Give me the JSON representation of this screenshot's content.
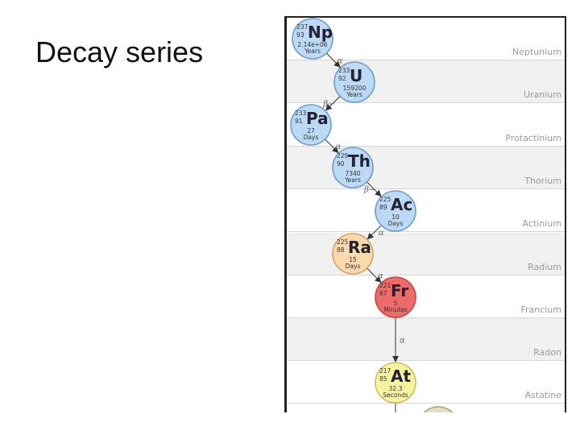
{
  "slide": {
    "title": "Decay series"
  },
  "elements": [
    "Neptunium",
    "Uranium",
    "Protactinium",
    "Thorium",
    "Actinium",
    "Radium",
    "Francium",
    "Radon",
    "Astatine"
  ],
  "nuclides": [
    {
      "symbol": "Np",
      "mass": "237",
      "atomic": "93",
      "halflife": "2.14e+06",
      "unit": "Years",
      "fill": "#bcd9f5",
      "stroke": "#6f9ccc"
    },
    {
      "symbol": "U",
      "mass": "233",
      "atomic": "92",
      "halflife": "159200",
      "unit": "Years",
      "fill": "#bcd9f5",
      "stroke": "#6f9ccc"
    },
    {
      "symbol": "Pa",
      "mass": "233",
      "atomic": "91",
      "halflife": "27",
      "unit": "Days",
      "fill": "#bcd9f5",
      "stroke": "#6f9ccc"
    },
    {
      "symbol": "Th",
      "mass": "229",
      "atomic": "90",
      "halflife": "7340",
      "unit": "Years",
      "fill": "#bcd9f5",
      "stroke": "#6f9ccc"
    },
    {
      "symbol": "Ac",
      "mass": "225",
      "atomic": "89",
      "halflife": "10",
      "unit": "Days",
      "fill": "#bcd9f5",
      "stroke": "#6f9ccc"
    },
    {
      "symbol": "Ra",
      "mass": "225",
      "atomic": "88",
      "halflife": "15",
      "unit": "Days",
      "fill": "#fbd8ad",
      "stroke": "#d2a46c"
    },
    {
      "symbol": "Fr",
      "mass": "221",
      "atomic": "87",
      "halflife": "5",
      "unit": "Minutes",
      "fill": "#ee6b6b",
      "stroke": "#c24848"
    },
    {
      "symbol": "At",
      "mass": "217",
      "atomic": "85",
      "halflife": "32.3",
      "unit": "Seconds",
      "fill": "#f8f2a4",
      "stroke": "#c9bf62"
    }
  ],
  "decays": [
    {
      "label": "α"
    },
    {
      "label": "β−"
    },
    {
      "label": "α"
    },
    {
      "label": "β−"
    },
    {
      "label": "α"
    },
    {
      "label": "α"
    },
    {
      "label": "α"
    }
  ]
}
